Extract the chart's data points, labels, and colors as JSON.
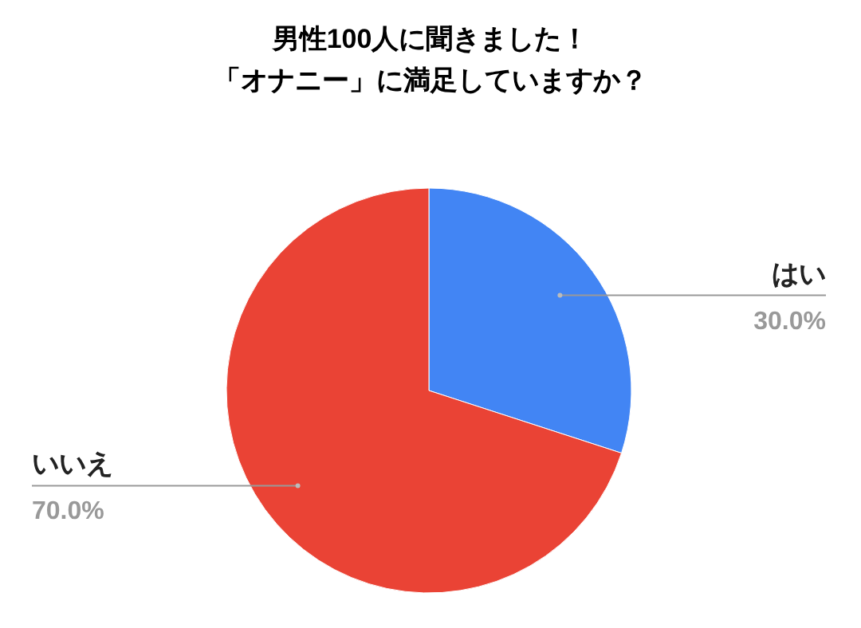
{
  "chart_data": {
    "type": "pie",
    "title": "男性100人に聞きました！",
    "subtitle": "「オナニー」に満足していますか？",
    "categories": [
      "はい",
      "いいえ"
    ],
    "values": [
      30,
      70
    ],
    "colors": [
      "#4285f4",
      "#ea4335"
    ],
    "value_labels": [
      "30.0%",
      "70.0%"
    ],
    "legend": false
  }
}
